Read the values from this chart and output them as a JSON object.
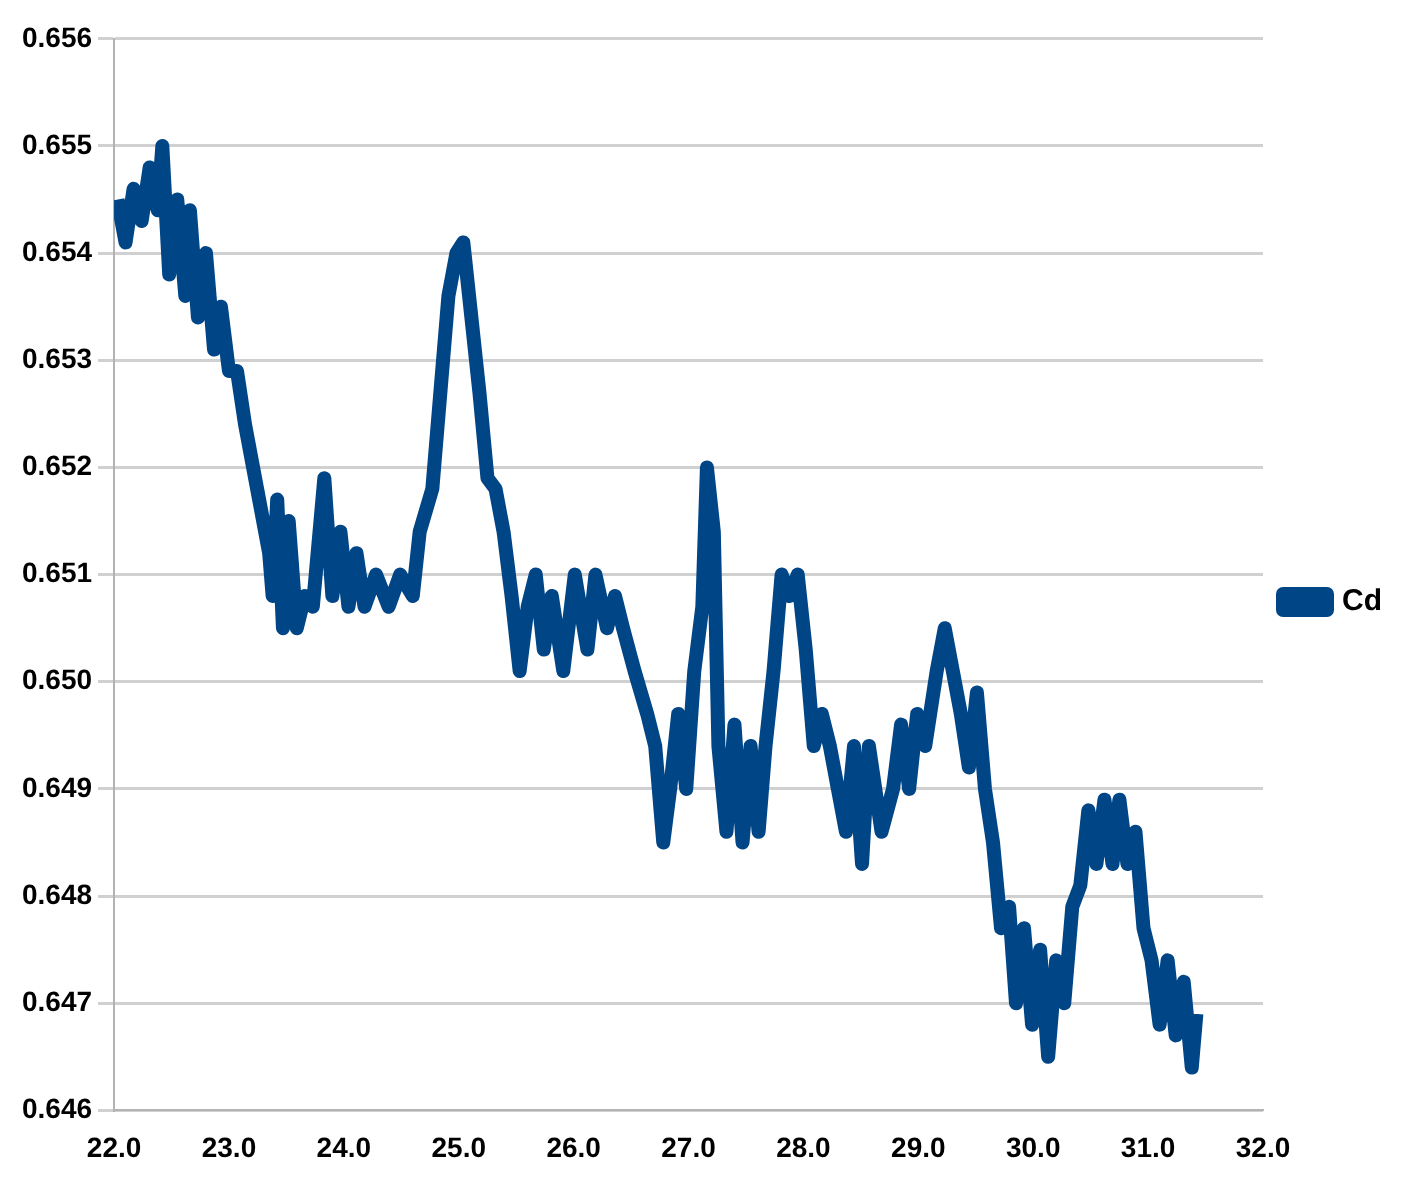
{
  "chart_data": {
    "type": "line",
    "grid": "y",
    "legend": "right",
    "marker": "none",
    "line_style": "solid",
    "xlim": [
      22.0,
      32.0
    ],
    "xticks": [
      {
        "value": 22,
        "label": "22.0"
      },
      {
        "value": 23,
        "label": "23.0"
      },
      {
        "value": 24,
        "label": "24.0"
      },
      {
        "value": 25,
        "label": "25.0"
      },
      {
        "value": 26,
        "label": "26.0"
      },
      {
        "value": 27,
        "label": "27.0"
      },
      {
        "value": 28,
        "label": "28.0"
      },
      {
        "value": 29,
        "label": "29.0"
      },
      {
        "value": 30,
        "label": "30.0"
      },
      {
        "value": 31,
        "label": "31.0"
      },
      {
        "value": 32,
        "label": "32.0"
      }
    ],
    "ylim": [
      0.646,
      0.656
    ],
    "yticks": [
      {
        "value": 0.646,
        "label": "0.646"
      },
      {
        "value": 0.647,
        "label": "0.647"
      },
      {
        "value": 0.648,
        "label": "0.648"
      },
      {
        "value": 0.649,
        "label": "0.649"
      },
      {
        "value": 0.65,
        "label": "0.650"
      },
      {
        "value": 0.651,
        "label": "0.651"
      },
      {
        "value": 0.652,
        "label": "0.652"
      },
      {
        "value": 0.653,
        "label": "0.653"
      },
      {
        "value": 0.654,
        "label": "0.654"
      },
      {
        "value": 0.655,
        "label": "0.655"
      },
      {
        "value": 0.656,
        "label": "0.656"
      }
    ],
    "series": [
      {
        "name": "Cd",
        "color": "#004586",
        "x": [
          22.03,
          22.1,
          22.17,
          22.24,
          22.31,
          22.38,
          22.42,
          22.48,
          22.55,
          22.62,
          22.66,
          22.73,
          22.8,
          22.87,
          22.93,
          23.0,
          23.07,
          23.14,
          23.21,
          23.28,
          23.35,
          23.38,
          23.42,
          23.47,
          23.52,
          23.59,
          23.66,
          23.73,
          23.83,
          23.9,
          23.97,
          24.04,
          24.11,
          24.18,
          24.28,
          24.39,
          24.49,
          24.6,
          24.66,
          24.77,
          24.84,
          24.91,
          24.98,
          25.04,
          25.11,
          25.18,
          25.25,
          25.32,
          25.39,
          25.46,
          25.53,
          25.6,
          25.67,
          25.74,
          25.81,
          25.91,
          26.01,
          26.12,
          26.19,
          26.29,
          26.36,
          26.43,
          26.53,
          26.64,
          26.71,
          26.78,
          26.84,
          26.91,
          26.98,
          27.05,
          27.12,
          27.16,
          27.22,
          27.26,
          27.33,
          27.4,
          27.47,
          27.54,
          27.61,
          27.67,
          27.74,
          27.81,
          27.88,
          27.95,
          28.02,
          28.09,
          28.16,
          28.23,
          28.3,
          28.37,
          28.44,
          28.51,
          28.57,
          28.68,
          28.78,
          28.85,
          28.92,
          28.99,
          29.06,
          29.16,
          29.23,
          29.3,
          29.37,
          29.44,
          29.51,
          29.58,
          29.65,
          29.72,
          29.79,
          29.85,
          29.92,
          29.99,
          30.06,
          30.13,
          30.2,
          30.27,
          30.34,
          30.41,
          30.48,
          30.55,
          30.62,
          30.69,
          30.75,
          30.82,
          30.89,
          30.96,
          31.03,
          31.1,
          31.17,
          31.24,
          31.31,
          31.38,
          31.42
        ],
        "values": [
          0.6545,
          0.6541,
          0.6546,
          0.6543,
          0.6548,
          0.6544,
          0.655,
          0.6538,
          0.6545,
          0.6536,
          0.6544,
          0.6534,
          0.654,
          0.6531,
          0.6535,
          0.6529,
          0.6529,
          0.6524,
          0.652,
          0.6516,
          0.6512,
          0.6508,
          0.6517,
          0.6505,
          0.6515,
          0.6505,
          0.6508,
          0.6507,
          0.6519,
          0.6508,
          0.6514,
          0.6507,
          0.6512,
          0.6507,
          0.651,
          0.6507,
          0.651,
          0.6508,
          0.6514,
          0.6518,
          0.6527,
          0.6536,
          0.654,
          0.6541,
          0.6534,
          0.6527,
          0.6519,
          0.6518,
          0.6514,
          0.6508,
          0.6501,
          0.6507,
          0.651,
          0.6503,
          0.6508,
          0.6501,
          0.651,
          0.6503,
          0.651,
          0.6505,
          0.6508,
          0.6505,
          0.6501,
          0.6497,
          0.6494,
          0.6485,
          0.649,
          0.6497,
          0.649,
          0.6501,
          0.6507,
          0.652,
          0.6514,
          0.6494,
          0.6486,
          0.6496,
          0.6485,
          0.6494,
          0.6486,
          0.6494,
          0.6501,
          0.651,
          0.6508,
          0.651,
          0.6503,
          0.6494,
          0.6497,
          0.6494,
          0.649,
          0.6486,
          0.6494,
          0.6483,
          0.6494,
          0.6486,
          0.649,
          0.6496,
          0.649,
          0.6497,
          0.6494,
          0.6501,
          0.6505,
          0.6501,
          0.6497,
          0.6492,
          0.6499,
          0.649,
          0.6485,
          0.6477,
          0.6479,
          0.647,
          0.6477,
          0.6468,
          0.6475,
          0.6465,
          0.6474,
          0.647,
          0.6479,
          0.6481,
          0.6488,
          0.6483,
          0.6489,
          0.6483,
          0.6489,
          0.6483,
          0.6486,
          0.6477,
          0.6474,
          0.6468,
          0.6474,
          0.6467,
          0.6472,
          0.6464,
          0.6469
        ]
      }
    ]
  }
}
